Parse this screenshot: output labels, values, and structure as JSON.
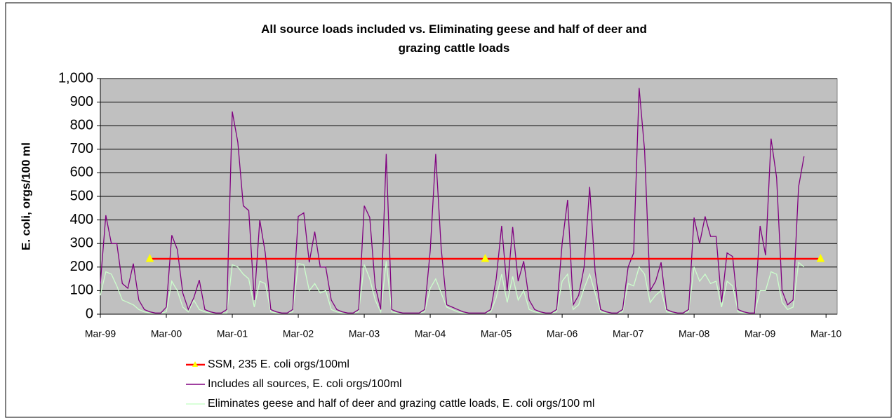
{
  "chart_data": {
    "type": "line",
    "title": "All source loads included vs. Eliminating geese and half of deer and grazing cattle loads",
    "y_label": "E. coli, orgs/100 ml",
    "x": [
      "Mar-99",
      "Apr-99",
      "May-99",
      "Jun-99",
      "Jul-99",
      "Aug-99",
      "Sep-99",
      "Oct-99",
      "Nov-99",
      "Dec-99",
      "Jan-00",
      "Feb-00",
      "Mar-00",
      "Apr-00",
      "May-00",
      "Jun-00",
      "Jul-00",
      "Aug-00",
      "Sep-00",
      "Oct-00",
      "Nov-00",
      "Dec-00",
      "Jan-01",
      "Feb-01",
      "Mar-01",
      "Apr-01",
      "May-01",
      "Jun-01",
      "Jul-01",
      "Aug-01",
      "Sep-01",
      "Oct-01",
      "Nov-01",
      "Dec-01",
      "Jan-02",
      "Feb-02",
      "Mar-02",
      "Apr-02",
      "May-02",
      "Jun-02",
      "Jul-02",
      "Aug-02",
      "Sep-02",
      "Oct-02",
      "Nov-02",
      "Dec-02",
      "Jan-03",
      "Feb-03",
      "Mar-03",
      "Apr-03",
      "May-03",
      "Jun-03",
      "Jul-03",
      "Aug-03",
      "Sep-03",
      "Oct-03",
      "Nov-03",
      "Dec-03",
      "Jan-04",
      "Feb-04",
      "Mar-04",
      "Apr-04",
      "May-04",
      "Jun-04",
      "Jul-04",
      "Aug-04",
      "Sep-04",
      "Oct-04",
      "Nov-04",
      "Dec-04",
      "Jan-05",
      "Feb-05",
      "Mar-05",
      "Apr-05",
      "May-05",
      "Jun-05",
      "Jul-05",
      "Aug-05",
      "Sep-05",
      "Oct-05",
      "Nov-05",
      "Dec-05",
      "Jan-06",
      "Feb-06",
      "Mar-06",
      "Apr-06",
      "May-06",
      "Jun-06",
      "Jul-06",
      "Aug-06",
      "Sep-06",
      "Oct-06",
      "Nov-06",
      "Dec-06",
      "Jan-07",
      "Feb-07",
      "Mar-07",
      "Apr-07",
      "May-07",
      "Jun-07",
      "Jul-07",
      "Aug-07",
      "Sep-07",
      "Oct-07",
      "Nov-07",
      "Dec-07",
      "Jan-08",
      "Feb-08",
      "Mar-08",
      "Apr-08",
      "May-08",
      "Jun-08",
      "Jul-08",
      "Aug-08",
      "Sep-08",
      "Oct-08",
      "Nov-08",
      "Dec-08",
      "Jan-09",
      "Feb-09",
      "Mar-09",
      "Apr-09",
      "May-09",
      "Jun-09",
      "Jul-09",
      "Aug-09",
      "Sep-09",
      "Oct-09",
      "Nov-09",
      "Dec-09",
      "Jan-10",
      "Feb-10",
      "Mar-10",
      "Apr-10"
    ],
    "xticks": [
      "Mar-99",
      "Mar-00",
      "Mar-01",
      "Mar-02",
      "Mar-03",
      "Mar-04",
      "Mar-05",
      "Mar-06",
      "Mar-07",
      "Mar-08",
      "Mar-09",
      "Mar-10"
    ],
    "ylim": [
      0,
      1000
    ],
    "yticks": [
      0,
      100,
      200,
      300,
      400,
      500,
      600,
      700,
      800,
      900,
      {
        "value": 1000,
        "label": "1,000"
      }
    ],
    "grid": true,
    "plot_background": "#c0c0c0",
    "series": [
      {
        "name": "SSM, 235 E. coli orgs/100ml",
        "color": "#ff0000",
        "marker": "triangle",
        "marker_color": "#ffff00",
        "values": [
          null,
          null,
          null,
          null,
          null,
          null,
          null,
          null,
          null,
          235,
          235,
          235,
          235,
          235,
          235,
          235,
          235,
          235,
          235,
          235,
          235,
          235,
          235,
          235,
          235,
          235,
          235,
          235,
          235,
          235,
          235,
          235,
          235,
          235,
          235,
          235,
          235,
          235,
          235,
          235,
          235,
          235,
          235,
          235,
          235,
          235,
          235,
          235,
          235,
          235,
          235,
          235,
          235,
          235,
          235,
          235,
          235,
          235,
          235,
          235,
          235,
          235,
          235,
          235,
          235,
          235,
          235,
          235,
          235,
          235,
          235,
          235,
          235,
          235,
          235,
          235,
          235,
          235,
          235,
          235,
          235,
          235,
          235,
          235,
          235,
          235,
          235,
          235,
          235,
          235,
          235,
          235,
          235,
          235,
          235,
          235,
          235,
          235,
          235,
          235,
          235,
          235,
          235,
          235,
          235,
          235,
          235,
          235,
          235,
          235,
          235,
          235,
          235,
          235,
          235,
          235,
          235,
          235,
          235,
          235,
          235,
          235,
          235,
          235,
          235,
          235,
          235,
          235,
          235,
          235,
          235,
          235,
          null,
          null
        ]
      },
      {
        "name": "Includes all sources, E. coli orgs/100ml",
        "color": "#800080",
        "values": [
          130,
          420,
          300,
          300,
          130,
          110,
          215,
          60,
          20,
          10,
          5,
          5,
          30,
          335,
          275,
          90,
          20,
          70,
          145,
          20,
          10,
          5,
          5,
          20,
          860,
          730,
          460,
          440,
          60,
          400,
          260,
          20,
          10,
          5,
          5,
          20,
          415,
          430,
          220,
          350,
          200,
          200,
          60,
          20,
          10,
          5,
          5,
          20,
          460,
          410,
          120,
          20,
          680,
          20,
          10,
          5,
          5,
          5,
          5,
          20,
          270,
          680,
          280,
          40,
          30,
          20,
          10,
          5,
          5,
          5,
          5,
          20,
          150,
          375,
          100,
          370,
          140,
          225,
          60,
          20,
          10,
          5,
          5,
          20,
          300,
          485,
          40,
          80,
          200,
          540,
          180,
          20,
          10,
          5,
          5,
          20,
          200,
          260,
          960,
          695,
          100,
          140,
          220,
          20,
          10,
          5,
          5,
          20,
          410,
          300,
          415,
          330,
          330,
          50,
          260,
          245,
          20,
          10,
          5,
          5,
          375,
          250,
          745,
          580,
          100,
          40,
          60,
          540,
          670,
          null,
          null,
          null,
          null,
          null
        ]
      },
      {
        "name": "Eliminates geese and half of deer and grazing cattle loads, E. coli orgs/100 ml",
        "color": "#ccffcc",
        "values": [
          80,
          180,
          170,
          120,
          60,
          50,
          40,
          20,
          10,
          5,
          5,
          5,
          10,
          140,
          100,
          30,
          10,
          60,
          20,
          10,
          5,
          5,
          5,
          5,
          210,
          200,
          170,
          150,
          30,
          140,
          130,
          10,
          5,
          5,
          5,
          10,
          215,
          210,
          100,
          130,
          90,
          100,
          20,
          10,
          5,
          5,
          5,
          10,
          210,
          150,
          60,
          10,
          225,
          10,
          5,
          5,
          5,
          5,
          5,
          10,
          110,
          150,
          90,
          30,
          20,
          10,
          5,
          5,
          5,
          5,
          5,
          10,
          70,
          170,
          50,
          160,
          60,
          100,
          20,
          10,
          5,
          5,
          5,
          10,
          140,
          170,
          20,
          40,
          110,
          170,
          90,
          10,
          5,
          5,
          5,
          10,
          130,
          120,
          200,
          170,
          50,
          80,
          100,
          10,
          5,
          5,
          5,
          10,
          200,
          140,
          170,
          130,
          140,
          30,
          140,
          120,
          10,
          5,
          5,
          5,
          100,
          100,
          180,
          170,
          50,
          20,
          30,
          220,
          200,
          null,
          null,
          null,
          null,
          null
        ]
      }
    ]
  }
}
